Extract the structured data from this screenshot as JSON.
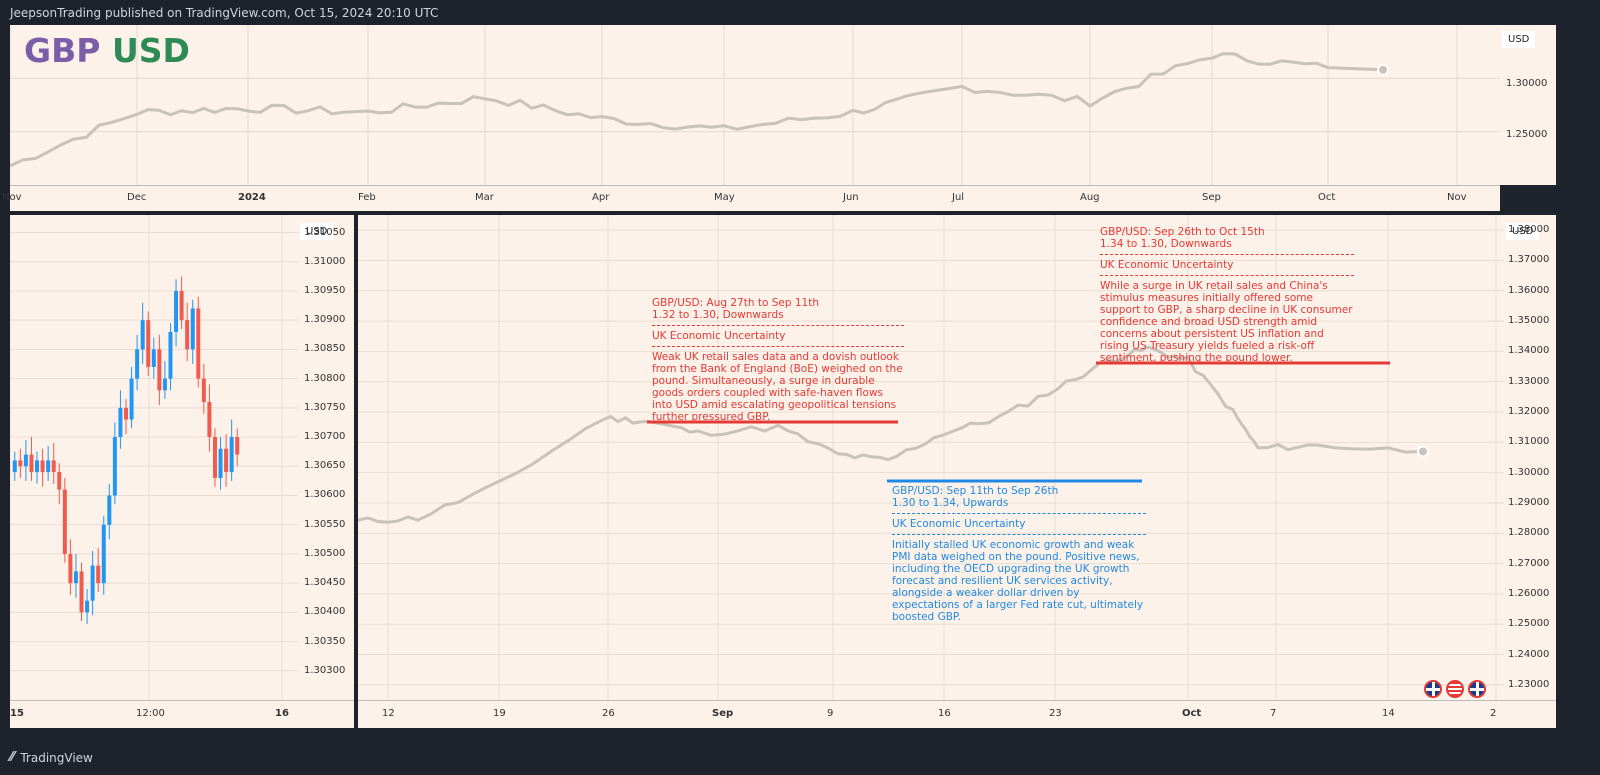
{
  "header": {
    "text": "JeepsonTrading published on TradingView.com, Oct 15, 2024 20:10 UTC"
  },
  "footer": {
    "logo_text": "TradingView"
  },
  "colors": {
    "bg": "#1e222d",
    "pane": "#fdf2e9",
    "line": "#c9c2bb",
    "up": "#2196f3",
    "down": "#f05a4f",
    "red_note": "#e53935",
    "blue_note": "#1e88e5",
    "gbp": "#7b5ea7",
    "usd": "#2e8b57"
  },
  "top_chart": {
    "title_gbp": "GBP",
    "title_usd": "USD",
    "currency_label": "USD",
    "x_ticks": [
      "Nov",
      "Dec",
      "2024",
      "Feb",
      "Mar",
      "Apr",
      "May",
      "Jun",
      "Jul",
      "Aug",
      "Sep",
      "Oct",
      "Nov"
    ],
    "y_ticks": [
      "1.30000",
      "1.25000"
    ]
  },
  "left_chart": {
    "currency_label": "USD",
    "x_ticks": [
      "15",
      "12:00",
      "16"
    ],
    "y_ticks": [
      "1.31050",
      "1.31000",
      "1.30950",
      "1.30900",
      "1.30850",
      "1.30800",
      "1.30750",
      "1.30700",
      "1.30650",
      "1.30600",
      "1.30550",
      "1.30500",
      "1.30450",
      "1.30400",
      "1.30350",
      "1.30300"
    ]
  },
  "main_chart": {
    "currency_label": "USD",
    "x_ticks": [
      "12",
      "19",
      "26",
      "Sep",
      "9",
      "16",
      "23",
      "Oct",
      "7",
      "14",
      "2"
    ],
    "y_ticks": [
      "1.38000",
      "1.37000",
      "1.36000",
      "1.35000",
      "1.34000",
      "1.33000",
      "1.32000",
      "1.31000",
      "1.30000",
      "1.29000",
      "1.28000",
      "1.27000",
      "1.26000",
      "1.25000",
      "1.24000",
      "1.23000"
    ]
  },
  "notes": {
    "note1": {
      "title": "GBP/USD: Aug 27th to Sep 11th",
      "range": "1.32 to 1.30, Downwards",
      "topic": "UK Economic Uncertainty",
      "body": "Weak UK retail sales data and a dovish outlook from the Bank of England (BoE) weighed on the pound. Simultaneously, a surge in durable goods orders coupled with safe-haven flows into USD amid escalating geopolitical tensions further pressured GBP."
    },
    "note2": {
      "title": "GBP/USD: Sep 11th to Sep 26th",
      "range": "1.30 to 1.34, Upwards",
      "topic": "UK Economic Uncertainty",
      "body": "Initially stalled UK economic growth and weak PMI data weighed on the pound. Positive news, including the OECD upgrading the UK growth forecast and resilient UK services activity, alongside a weaker dollar driven by expectations of a larger Fed rate cut, ultimately boosted GBP."
    },
    "note3": {
      "title": "GBP/USD: Sep 26th to Oct 15th",
      "range": "1.34 to 1.30, Downwards",
      "topic": "UK Economic Uncertainty",
      "body": "While a surge in UK retail sales and China's stimulus measures initially offered some support to GBP, a sharp decline in UK consumer confidence and broad USD strength amid concerns about persistent US inflation and rising US Treasury yields fueled a risk-off sentiment, pushing the pound lower."
    }
  },
  "chart_data": [
    {
      "type": "line",
      "title": "GBP USD",
      "x": [
        "Nov",
        "Dec",
        "2024",
        "Feb",
        "Mar",
        "Apr",
        "May",
        "Jun",
        "Jul",
        "Aug",
        "Sep",
        "Oct"
      ],
      "values": [
        1.218,
        1.268,
        1.272,
        1.268,
        1.282,
        1.262,
        1.252,
        1.268,
        1.292,
        1.278,
        1.322,
        1.31
      ],
      "ylim": [
        1.2,
        1.35
      ]
    },
    {
      "type": "candlestick",
      "x": [
        "15",
        "12:00",
        "16"
      ],
      "ylim": [
        1.3025,
        1.3108
      ]
    },
    {
      "type": "line",
      "x": [
        "Aug 12",
        "Aug 19",
        "Aug 26",
        "Sep 2",
        "Sep 9",
        "Sep 16",
        "Sep 23",
        "Sep 30",
        "Oct 7",
        "Oct 14"
      ],
      "values": [
        1.284,
        1.296,
        1.318,
        1.312,
        1.305,
        1.313,
        1.328,
        1.337,
        1.308,
        1.306
      ],
      "ylim": [
        1.225,
        1.385
      ]
    }
  ]
}
